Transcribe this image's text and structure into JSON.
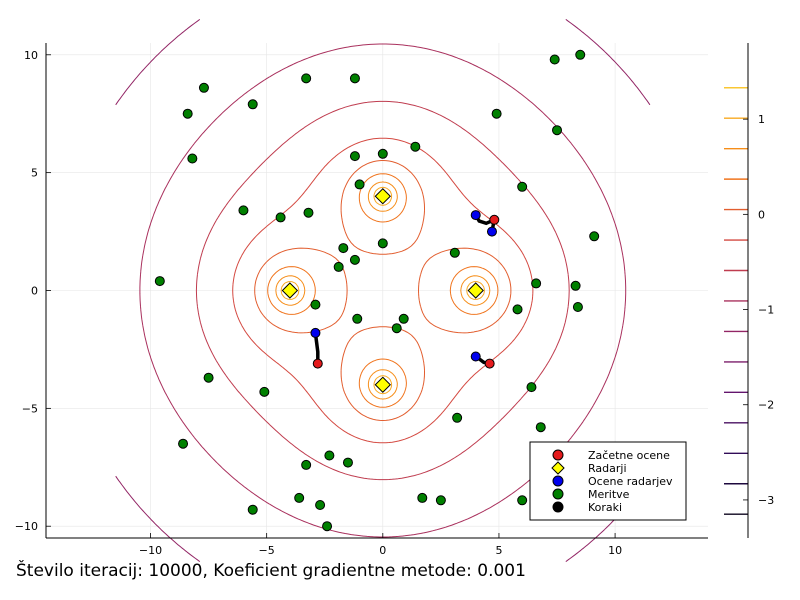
{
  "footer_text": "Število iteracij: 10000, Koeficient gradientne metode: 0.001",
  "chart_data": {
    "type": "scatter",
    "title": "",
    "xlabel": "",
    "ylabel": "",
    "xlim": [
      -14.5,
      14
    ],
    "ylim": [
      -10.5,
      10.5
    ],
    "x_ticks": [
      -10,
      -5,
      0,
      5,
      10
    ],
    "y_ticks": [
      -10,
      -5,
      0,
      5,
      10
    ],
    "x_tick_labels": [
      "−10",
      "−5",
      "0",
      "5",
      "10"
    ],
    "y_tick_labels": [
      "−10",
      "−5",
      "0",
      "5",
      "10"
    ],
    "grid": true,
    "legend_position": "bottom-right",
    "contour": {
      "type": "contour",
      "note_levels_only_labeled": true,
      "colorbar_ticks": [
        1,
        0,
        -1,
        -2,
        -3
      ],
      "colorbar_tick_labels": [
        "1",
        "0",
        "−1",
        "−2",
        "−3"
      ],
      "colorbar_range": [
        -3.4,
        1.8
      ]
    },
    "series": [
      {
        "name": "Začetne ocene",
        "color": "#e41a1c",
        "marker": "circle",
        "points": [
          [
            4.8,
            3.0
          ],
          [
            -2.8,
            -3.1
          ],
          [
            4.6,
            -3.1
          ]
        ]
      },
      {
        "name": "Radarji",
        "color": "#ffff00",
        "marker": "diamond",
        "points": [
          [
            0,
            4
          ],
          [
            -4,
            0
          ],
          [
            4,
            0
          ],
          [
            0,
            -4
          ]
        ]
      },
      {
        "name": "Ocene radarjev",
        "color": "#0000ee",
        "marker": "circle",
        "points": [
          [
            4.0,
            3.2
          ],
          [
            4.7,
            2.5
          ],
          [
            -2.9,
            -1.8
          ],
          [
            4.0,
            -2.8
          ]
        ]
      },
      {
        "name": "Meritve",
        "color": "#008000",
        "marker": "circle",
        "points": [
          [
            -8.4,
            7.5
          ],
          [
            -7.7,
            8.6
          ],
          [
            -5.6,
            7.9
          ],
          [
            -3.3,
            9.0
          ],
          [
            -1.2,
            9.0
          ],
          [
            7.4,
            9.8
          ],
          [
            8.5,
            10.0
          ],
          [
            -8.2,
            5.6
          ],
          [
            4.9,
            7.5
          ],
          [
            7.5,
            6.8
          ],
          [
            -1.2,
            5.7
          ],
          [
            0,
            5.8
          ],
          [
            1.4,
            6.1
          ],
          [
            -1.0,
            4.5
          ],
          [
            6.0,
            4.4
          ],
          [
            -6.0,
            3.4
          ],
          [
            -4.4,
            3.1
          ],
          [
            -3.2,
            3.3
          ],
          [
            9.1,
            2.3
          ],
          [
            -1.7,
            1.8
          ],
          [
            0,
            2.0
          ],
          [
            3.1,
            1.6
          ],
          [
            -1.2,
            1.3
          ],
          [
            -1.9,
            1.0
          ],
          [
            -9.6,
            0.4
          ],
          [
            6.6,
            0.3
          ],
          [
            8.3,
            0.2
          ],
          [
            -2.9,
            -0.6
          ],
          [
            5.8,
            -0.8
          ],
          [
            8.4,
            -0.7
          ],
          [
            -1.1,
            -1.2
          ],
          [
            0.9,
            -1.2
          ],
          [
            0.6,
            -1.6
          ],
          [
            -7.5,
            -3.7
          ],
          [
            -5.1,
            -4.3
          ],
          [
            6.4,
            -4.1
          ],
          [
            3.2,
            -5.4
          ],
          [
            6.8,
            -5.8
          ],
          [
            -8.6,
            -6.5
          ],
          [
            -2.3,
            -7.0
          ],
          [
            -1.5,
            -7.3
          ],
          [
            -3.3,
            -7.4
          ],
          [
            -3.6,
            -8.8
          ],
          [
            -2.7,
            -9.1
          ],
          [
            1.7,
            -8.8
          ],
          [
            2.5,
            -8.9
          ],
          [
            6.0,
            -8.9
          ],
          [
            -5.6,
            -9.3
          ],
          [
            -2.4,
            -10.0
          ]
        ]
      },
      {
        "name": "Koraki",
        "color": "#000000",
        "marker": "circle",
        "paths": [
          [
            [
              4.8,
              3.0
            ],
            [
              4.45,
              2.85
            ],
            [
              4.15,
              2.95
            ],
            [
              4.0,
              3.2
            ]
          ],
          [
            [
              4.8,
              3.0
            ],
            [
              4.75,
              2.75
            ],
            [
              4.7,
              2.5
            ]
          ],
          [
            [
              -2.8,
              -3.1
            ],
            [
              -2.8,
              -2.6
            ],
            [
              -2.85,
              -2.2
            ],
            [
              -2.9,
              -1.8
            ]
          ],
          [
            [
              4.6,
              -3.1
            ],
            [
              4.35,
              -3.05
            ],
            [
              4.15,
              -2.9
            ],
            [
              4.0,
              -2.8
            ]
          ]
        ]
      }
    ]
  }
}
